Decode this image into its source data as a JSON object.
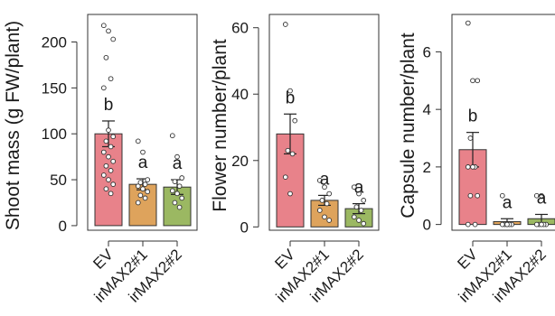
{
  "colors": {
    "EV": "#e8828a",
    "irMAX2#1": "#dea35c",
    "irMAX2#2": "#9bb862"
  },
  "chart_data": [
    {
      "type": "bar",
      "ylabel": "Shoot mass (g FW/plant)",
      "ylim": [
        -5,
        230
      ],
      "yticks": [
        0,
        50,
        100,
        150,
        200
      ],
      "categories": [
        "EV",
        "irMAX2#1",
        "irMAX2#2"
      ],
      "values": [
        100,
        45,
        42
      ],
      "errors": [
        14,
        6,
        8
      ],
      "letters": [
        "b",
        "a",
        "a"
      ],
      "points": [
        [
          218,
          212,
          203,
          183,
          160,
          150,
          104,
          97,
          92,
          86,
          80,
          75,
          70,
          65,
          60,
          55,
          50,
          45,
          40,
          35
        ],
        [
          92,
          80,
          50,
          47,
          45,
          43,
          40,
          37,
          33,
          30,
          25
        ],
        [
          98,
          75,
          52,
          48,
          43,
          38,
          35,
          30,
          25,
          20
        ]
      ]
    },
    {
      "type": "bar",
      "ylabel": "Flower number/plant",
      "ylim": [
        -1,
        64
      ],
      "yticks": [
        0,
        20,
        40,
        60
      ],
      "categories": [
        "EV",
        "irMAX2#1",
        "irMAX2#2"
      ],
      "values": [
        28,
        8,
        5.5
      ],
      "errors": [
        6,
        1.5,
        1.5
      ],
      "letters": [
        "b",
        "a",
        "a"
      ],
      "points": [
        [
          61,
          41,
          32,
          23,
          22,
          15,
          10
        ],
        [
          14,
          12,
          10,
          8,
          7,
          5,
          3,
          2
        ],
        [
          12,
          10,
          8,
          6,
          5,
          3,
          2,
          1
        ]
      ]
    },
    {
      "type": "bar",
      "ylabel": "Capsule number/plant",
      "ylim": [
        -0.2,
        7.3
      ],
      "yticks": [
        0,
        2,
        4,
        6
      ],
      "categories": [
        "EV",
        "irMAX2#1",
        "irMAX2#2"
      ],
      "values": [
        2.6,
        0.1,
        0.2
      ],
      "errors": [
        0.6,
        0.1,
        0.15
      ],
      "letters": [
        "b",
        "a",
        "a"
      ],
      "points": [
        [
          7,
          5,
          5,
          3,
          2,
          2,
          2,
          1,
          1,
          0,
          0
        ],
        [
          1,
          0,
          0,
          0,
          0,
          0,
          0
        ],
        [
          1,
          1,
          0,
          0,
          0,
          0,
          0
        ]
      ]
    }
  ]
}
